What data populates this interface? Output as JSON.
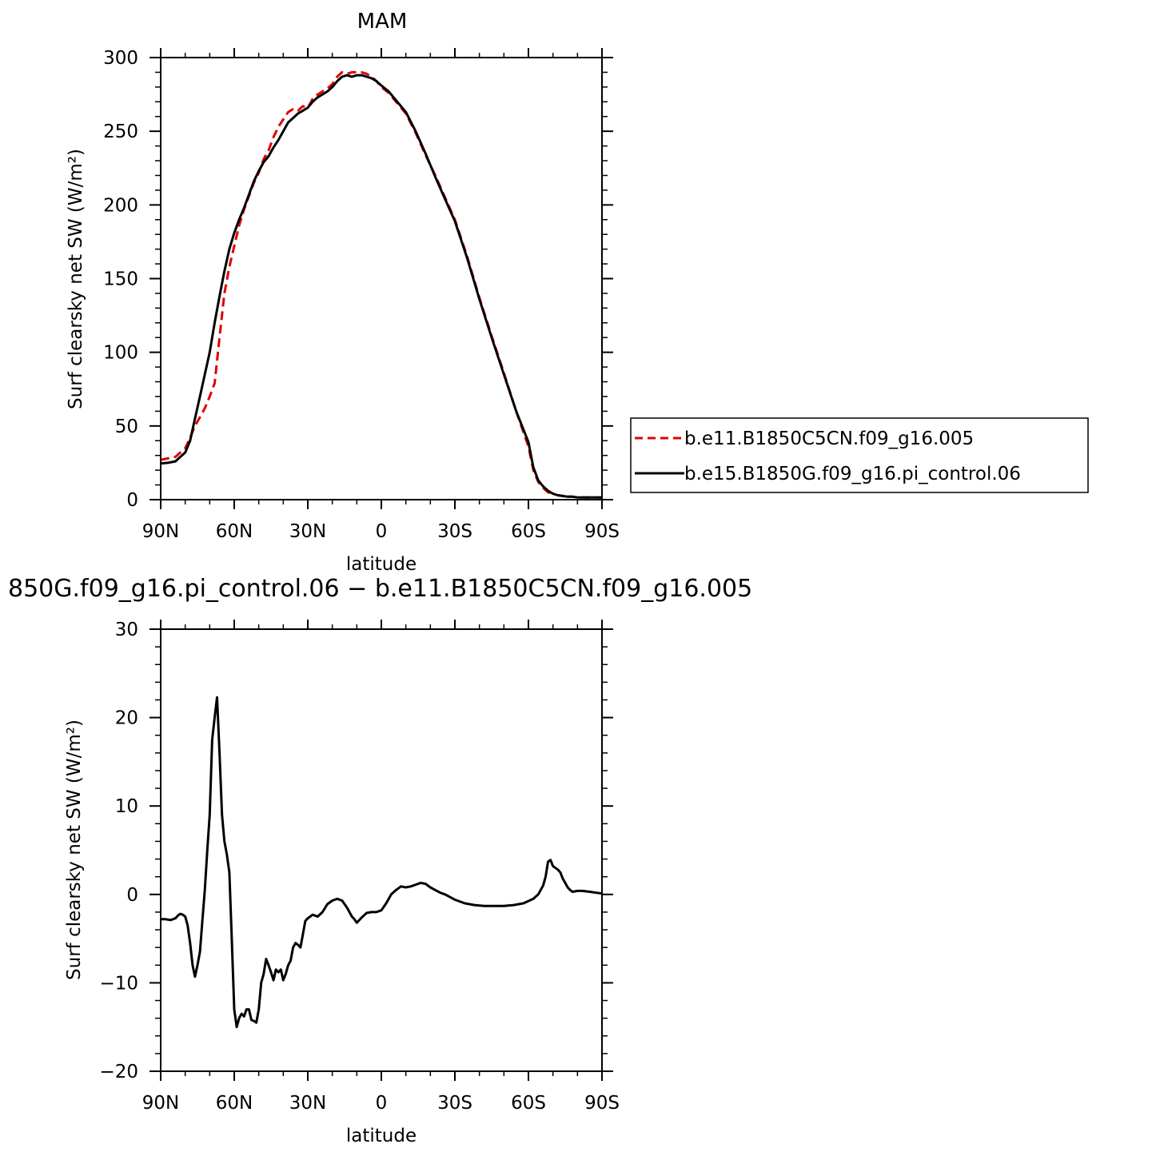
{
  "chart_data": [
    {
      "type": "line",
      "title": "MAM",
      "xlabel": "latitude",
      "ylabel": "Surf clearsky net SW (W/m²)",
      "xlim": [
        90,
        -90
      ],
      "ylim": [
        0,
        300
      ],
      "xtick_values": [
        90,
        60,
        30,
        0,
        -30,
        -60,
        -90
      ],
      "xtick_labels": [
        "90N",
        "60N",
        "30N",
        "0",
        "30S",
        "60S",
        "90S"
      ],
      "ytick_values": [
        0,
        50,
        100,
        150,
        200,
        250,
        300
      ],
      "ytick_labels": [
        "0",
        "50",
        "100",
        "150",
        "200",
        "250",
        "300"
      ],
      "legend_position": "right",
      "series": [
        {
          "name": "b.e11.B1850C5CN.f09_g16.005",
          "color": "#e00000",
          "dash": "dashed",
          "x": [
            90,
            87,
            84,
            82,
            80,
            78,
            76,
            74,
            72,
            70,
            68,
            66,
            64,
            62,
            60,
            58,
            56,
            54,
            52,
            50,
            48,
            46,
            44,
            42,
            40,
            38,
            36,
            34,
            32,
            30,
            28,
            26,
            24,
            22,
            20,
            18,
            16,
            14,
            12,
            10,
            8,
            6,
            4,
            2,
            0,
            -3,
            -6,
            -10,
            -14,
            -18,
            -22,
            -26,
            -30,
            -35,
            -40,
            -45,
            -50,
            -55,
            -60,
            -62,
            -64,
            -66,
            -68,
            -70,
            -72,
            -74,
            -76,
            -78,
            -80,
            -83,
            -86,
            -90
          ],
          "y": [
            27,
            28,
            29,
            32,
            35,
            42,
            50,
            56,
            62,
            70,
            79,
            110,
            140,
            158,
            172,
            186,
            197,
            206,
            215,
            222,
            231,
            237,
            246,
            253,
            258,
            263,
            265,
            264,
            267,
            266,
            272,
            275,
            277,
            279,
            282,
            287,
            290,
            289,
            290,
            290,
            290,
            289,
            287,
            284,
            280,
            276,
            270,
            262,
            249,
            234,
            220,
            205,
            190,
            165,
            137,
            111,
            86,
            60,
            36,
            20,
            12,
            8,
            5,
            4,
            3,
            2.5,
            2,
            2,
            1.5,
            1.5,
            1.5,
            1.5
          ]
        },
        {
          "name": "b.e15.B1850G.f09_g16.pi_control.06",
          "color": "#000000",
          "dash": "solid",
          "x": [
            90,
            87,
            84,
            82,
            80,
            78,
            76,
            74,
            72,
            70,
            68,
            66,
            64,
            62,
            60,
            58,
            56,
            54,
            52,
            50,
            48,
            46,
            44,
            42,
            40,
            38,
            36,
            34,
            32,
            30,
            28,
            26,
            24,
            22,
            20,
            18,
            16,
            14,
            12,
            10,
            8,
            6,
            4,
            2,
            0,
            -3,
            -6,
            -10,
            -14,
            -18,
            -22,
            -26,
            -30,
            -35,
            -40,
            -45,
            -50,
            -55,
            -60,
            -62,
            -64,
            -66,
            -68,
            -70,
            -72,
            -74,
            -76,
            -78,
            -80,
            -83,
            -86,
            -90
          ],
          "y": [
            24.5,
            25,
            26,
            29,
            32,
            40,
            55,
            70,
            85,
            100,
            120,
            138,
            155,
            170,
            181,
            190,
            198,
            207,
            216,
            223,
            229,
            233,
            239,
            244,
            250,
            256,
            259,
            262,
            264,
            266,
            270,
            273,
            275,
            277,
            280,
            284,
            287,
            288,
            287,
            288,
            288,
            287,
            286,
            284,
            281,
            277,
            271,
            263,
            250,
            235,
            219,
            204,
            189,
            164,
            136,
            110,
            85,
            60,
            39,
            22,
            13,
            9,
            6,
            4,
            3,
            2.5,
            2,
            2,
            1.5,
            1.5,
            1.5,
            1.5
          ]
        }
      ]
    },
    {
      "type": "line",
      "title": "850G.f09_g16.pi_control.06 − b.e11.B1850C5CN.f09_g16.005",
      "xlabel": "latitude",
      "ylabel": "Surf clearsky net SW (W/m²)",
      "xlim": [
        90,
        -90
      ],
      "ylim": [
        -20,
        30
      ],
      "xtick_values": [
        90,
        60,
        30,
        0,
        -30,
        -60,
        -90
      ],
      "xtick_labels": [
        "90N",
        "60N",
        "30N",
        "0",
        "30S",
        "60S",
        "90S"
      ],
      "ytick_values": [
        -20,
        -10,
        0,
        10,
        20,
        30
      ],
      "ytick_labels": [
        "−20",
        "−10",
        "0",
        "10",
        "20",
        "30"
      ],
      "series": [
        {
          "color": "#000000",
          "dash": "solid",
          "x": [
            90,
            88,
            86,
            84,
            83,
            82,
            81,
            80,
            79,
            78,
            77,
            76,
            75,
            74,
            73,
            72,
            71,
            70,
            69,
            68,
            67,
            66,
            65,
            64,
            63,
            62,
            61,
            60,
            59,
            58,
            57,
            56,
            55,
            54,
            53,
            52,
            51,
            50,
            49,
            48,
            47,
            46,
            45,
            44,
            43,
            42,
            41,
            40,
            39,
            38,
            37,
            36,
            35,
            34,
            33,
            32,
            31,
            30,
            28,
            26,
            24,
            22,
            20,
            18,
            16,
            14,
            13,
            12,
            11,
            10,
            8,
            6,
            4,
            2,
            0,
            -2,
            -4,
            -6,
            -8,
            -10,
            -12,
            -14,
            -16,
            -18,
            -20,
            -22,
            -24,
            -26,
            -28,
            -30,
            -34,
            -38,
            -42,
            -46,
            -50,
            -54,
            -58,
            -62,
            -64,
            -66,
            -67,
            -68,
            -69,
            -70,
            -71,
            -72,
            -73,
            -74,
            -75,
            -76,
            -77,
            -78,
            -80,
            -82,
            -85,
            -90
          ],
          "y": [
            -2.8,
            -2.8,
            -2.9,
            -2.7,
            -2.4,
            -2.2,
            -2.3,
            -2.5,
            -3.5,
            -5.5,
            -8,
            -9.3,
            -8,
            -6.5,
            -3,
            0.5,
            5,
            9,
            17.5,
            20,
            22.3,
            16,
            9,
            6,
            4.5,
            2.5,
            -5,
            -13,
            -15,
            -14,
            -13.5,
            -13.8,
            -13,
            -13,
            -14.2,
            -14.3,
            -14.5,
            -13,
            -10,
            -9,
            -7.3,
            -8,
            -8.8,
            -9.7,
            -8.5,
            -8.8,
            -8.5,
            -9.7,
            -9,
            -8,
            -7.5,
            -6,
            -5.5,
            -5.7,
            -6,
            -4.5,
            -3,
            -2.7,
            -2.3,
            -2.5,
            -2,
            -1.1,
            -0.7,
            -0.5,
            -0.7,
            -1.5,
            -2,
            -2.5,
            -2.8,
            -3.2,
            -2.6,
            -2.1,
            -2,
            -2,
            -1.8,
            -1,
            0,
            0.5,
            0.9,
            0.8,
            0.9,
            1.1,
            1.3,
            1.2,
            0.8,
            0.5,
            0.2,
            0,
            -0.3,
            -0.6,
            -1,
            -1.2,
            -1.3,
            -1.3,
            -1.3,
            -1.2,
            -1,
            -0.5,
            0,
            1,
            2,
            3.7,
            3.9,
            3.2,
            3,
            2.8,
            2.5,
            1.8,
            1.3,
            0.8,
            0.5,
            0.3,
            0.4,
            0.4,
            0.3,
            0.1
          ]
        }
      ]
    }
  ]
}
